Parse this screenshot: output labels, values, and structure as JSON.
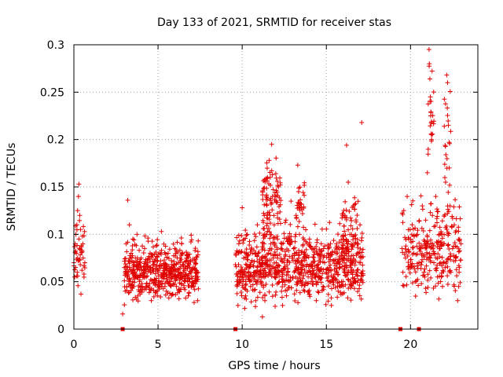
{
  "chart_data": {
    "type": "scatter",
    "title": "Day 133 of 2021, SRMTID for receiver stas",
    "xlabel": "GPS time / hours",
    "ylabel": "SRMTID / TECUs",
    "xlim": [
      0,
      24
    ],
    "ylim": [
      0,
      0.3
    ],
    "xticks": [
      0,
      5,
      10,
      15,
      20
    ],
    "xtick_labels": [
      "0",
      "5",
      "10",
      "15",
      "20"
    ],
    "yticks": [
      0,
      0.05,
      0.1,
      0.15,
      0.2,
      0.25,
      0.3
    ],
    "ytick_labels": [
      "0",
      "0.05",
      "0.1",
      "0.15",
      "0.2",
      "0.25",
      "0.3"
    ],
    "grid": true,
    "marker": "+",
    "series_color": "#e00000",
    "series": [
      {
        "name": "SRMTID",
        "points": [
          [
            0.0,
            0.07
          ],
          [
            0.05,
            0.055
          ],
          [
            0.08,
            0.09
          ],
          [
            0.1,
            0.065
          ],
          [
            0.12,
            0.1
          ],
          [
            0.15,
            0.08
          ],
          [
            0.18,
            0.11
          ],
          [
            0.2,
            0.06
          ],
          [
            0.22,
            0.125
          ],
          [
            0.25,
            0.072
          ],
          [
            0.27,
            0.14
          ],
          [
            0.3,
            0.095
          ],
          [
            0.3,
            0.153
          ],
          [
            0.33,
            0.085
          ],
          [
            0.35,
            0.12
          ],
          [
            0.38,
            0.068
          ],
          [
            0.4,
            0.105
          ],
          [
            0.42,
            0.037
          ],
          [
            0.45,
            0.088
          ],
          [
            0.48,
            0.062
          ],
          [
            0.5,
            0.098
          ],
          [
            0.55,
            0.075
          ],
          [
            0.6,
            0.058
          ],
          [
            0.65,
            0.07
          ],
          [
            2.9,
            0.016
          ],
          [
            3.0,
            0.065
          ],
          [
            3.05,
            0.04
          ],
          [
            3.1,
            0.09
          ],
          [
            3.15,
            0.055
          ],
          [
            3.2,
            0.136
          ],
          [
            3.25,
            0.072
          ],
          [
            3.3,
            0.11
          ],
          [
            3.35,
            0.05
          ],
          [
            3.4,
            0.08
          ],
          [
            3.45,
            0.062
          ],
          [
            3.5,
            0.095
          ],
          [
            3.55,
            0.045
          ],
          [
            3.6,
            0.07
          ],
          [
            3.7,
            0.058
          ],
          [
            3.75,
            0.1
          ],
          [
            3.8,
            0.035
          ],
          [
            3.85,
            0.068
          ],
          [
            3.9,
            0.05
          ],
          [
            4.0,
            0.075
          ],
          [
            4.1,
            0.042
          ],
          [
            4.15,
            0.06
          ],
          [
            4.2,
            0.085
          ],
          [
            4.3,
            0.055
          ],
          [
            4.35,
            0.07
          ],
          [
            4.4,
            0.096
          ],
          [
            4.5,
            0.048
          ],
          [
            4.55,
            0.065
          ],
          [
            4.6,
            0.03
          ],
          [
            4.7,
            0.078
          ],
          [
            4.8,
            0.052
          ],
          [
            4.9,
            0.088
          ],
          [
            5.0,
            0.06
          ],
          [
            5.1,
            0.045
          ],
          [
            5.15,
            0.072
          ],
          [
            5.2,
            0.103
          ],
          [
            5.3,
            0.055
          ],
          [
            5.4,
            0.068
          ],
          [
            5.5,
            0.04
          ],
          [
            5.6,
            0.08
          ],
          [
            5.7,
            0.058
          ],
          [
            5.8,
            0.065
          ],
          [
            5.9,
            0.047
          ],
          [
            6.0,
            0.085
          ],
          [
            6.1,
            0.055
          ],
          [
            6.2,
            0.07
          ],
          [
            6.3,
            0.042
          ],
          [
            6.4,
            0.09
          ],
          [
            6.5,
            0.06
          ],
          [
            6.6,
            0.05
          ],
          [
            6.7,
            0.075
          ],
          [
            6.8,
            0.035
          ],
          [
            6.9,
            0.065
          ],
          [
            7.0,
            0.055
          ],
          [
            7.1,
            0.045
          ],
          [
            7.2,
            0.07
          ],
          [
            7.3,
            0.05
          ],
          [
            7.35,
            0.03
          ],
          [
            9.6,
            0.068
          ],
          [
            9.7,
            0.045
          ],
          [
            9.75,
            0.025
          ],
          [
            9.8,
            0.09
          ],
          [
            9.9,
            0.06
          ],
          [
            10.0,
            0.128
          ],
          [
            10.05,
            0.05
          ],
          [
            10.1,
            0.075
          ],
          [
            10.2,
            0.035
          ],
          [
            10.3,
            0.1
          ],
          [
            10.4,
            0.065
          ],
          [
            10.5,
            0.045
          ],
          [
            10.6,
            0.08
          ],
          [
            10.7,
            0.055
          ],
          [
            10.8,
            0.03
          ],
          [
            10.9,
            0.11
          ],
          [
            11.0,
            0.07
          ],
          [
            11.1,
            0.05
          ],
          [
            11.2,
            0.013
          ],
          [
            11.3,
            0.09
          ],
          [
            11.4,
            0.06
          ],
          [
            11.5,
            0.16
          ],
          [
            11.55,
            0.08
          ],
          [
            11.6,
            0.178
          ],
          [
            11.65,
            0.12
          ],
          [
            11.7,
            0.09
          ],
          [
            11.75,
            0.195
          ],
          [
            11.8,
            0.14
          ],
          [
            11.85,
            0.075
          ],
          [
            11.9,
            0.11
          ],
          [
            12.0,
            0.065
          ],
          [
            12.1,
            0.095
          ],
          [
            12.2,
            0.05
          ],
          [
            12.3,
            0.085
          ],
          [
            12.4,
            0.025
          ],
          [
            12.5,
            0.07
          ],
          [
            12.6,
            0.115
          ],
          [
            12.7,
            0.06
          ],
          [
            12.8,
            0.09
          ],
          [
            12.9,
            0.135
          ],
          [
            13.0,
            0.055
          ],
          [
            13.1,
            0.08
          ],
          [
            13.2,
            0.12
          ],
          [
            13.3,
            0.173
          ],
          [
            13.35,
            0.145
          ],
          [
            13.4,
            0.1
          ],
          [
            13.5,
            0.065
          ],
          [
            13.6,
            0.088
          ],
          [
            13.7,
            0.04
          ],
          [
            13.8,
            0.075
          ],
          [
            13.9,
            0.06
          ],
          [
            14.0,
            0.095
          ],
          [
            14.1,
            0.05
          ],
          [
            14.2,
            0.07
          ],
          [
            14.3,
            0.085
          ],
          [
            14.4,
            0.03
          ],
          [
            14.5,
            0.065
          ],
          [
            14.6,
            0.055
          ],
          [
            14.7,
            0.09
          ],
          [
            14.8,
            0.045
          ],
          [
            14.9,
            0.07
          ],
          [
            15.0,
            0.06
          ],
          [
            15.1,
            0.08
          ],
          [
            15.2,
            0.05
          ],
          [
            15.3,
            0.025
          ],
          [
            15.4,
            0.072
          ],
          [
            15.5,
            0.058
          ],
          [
            15.6,
            0.09
          ],
          [
            15.7,
            0.04
          ],
          [
            15.8,
            0.065
          ],
          [
            15.9,
            0.05
          ],
          [
            16.0,
            0.085
          ],
          [
            16.1,
            0.12
          ],
          [
            16.2,
            0.194
          ],
          [
            16.3,
            0.155
          ],
          [
            16.4,
            0.1
          ],
          [
            16.5,
            0.07
          ],
          [
            16.6,
            0.13
          ],
          [
            16.7,
            0.09
          ],
          [
            16.8,
            0.06
          ],
          [
            16.9,
            0.08
          ],
          [
            17.0,
            0.11
          ],
          [
            17.1,
            0.218
          ],
          [
            19.5,
            0.085
          ],
          [
            19.55,
            0.06
          ],
          [
            19.6,
            0.125
          ],
          [
            19.7,
            0.075
          ],
          [
            19.8,
            0.14
          ],
          [
            19.9,
            0.095
          ],
          [
            20.0,
            0.065
          ],
          [
            20.1,
            0.11
          ],
          [
            20.2,
            0.08
          ],
          [
            20.3,
            0.05
          ],
          [
            20.4,
            0.1
          ],
          [
            20.5,
            0.07
          ],
          [
            20.6,
            0.085
          ],
          [
            20.7,
            0.13
          ],
          [
            20.8,
            0.06
          ],
          [
            20.85,
            0.09
          ],
          [
            20.9,
            0.115
          ],
          [
            21.0,
            0.165
          ],
          [
            21.05,
            0.075
          ],
          [
            21.1,
            0.295
          ],
          [
            21.12,
            0.28
          ],
          [
            21.15,
            0.264
          ],
          [
            21.18,
            0.245
          ],
          [
            21.2,
            0.225
          ],
          [
            21.25,
            0.205
          ],
          [
            21.3,
            0.12
          ],
          [
            21.4,
            0.08
          ],
          [
            21.5,
            0.14
          ],
          [
            21.6,
            0.055
          ],
          [
            21.7,
            0.1
          ],
          [
            21.8,
            0.07
          ],
          [
            21.9,
            0.045
          ],
          [
            22.0,
            0.09
          ],
          [
            22.1,
            0.184
          ],
          [
            22.15,
            0.268
          ],
          [
            22.2,
            0.26
          ],
          [
            22.25,
            0.215
          ],
          [
            22.3,
            0.17
          ],
          [
            22.35,
            0.13
          ],
          [
            22.4,
            0.06
          ],
          [
            22.5,
            0.085
          ],
          [
            22.6,
            0.11
          ],
          [
            22.7,
            0.075
          ],
          [
            22.8,
            0.03
          ],
          [
            22.9,
            0.065
          ],
          [
            23.0,
            0.09
          ]
        ],
        "bursts": [
          [
            0.0,
            0.7,
            0.035,
            0.155,
            30
          ],
          [
            3.0,
            7.4,
            0.025,
            0.105,
            500
          ],
          [
            9.6,
            17.2,
            0.02,
            0.125,
            780
          ],
          [
            11.2,
            12.3,
            0.09,
            0.195,
            80
          ],
          [
            13.2,
            13.7,
            0.1,
            0.17,
            25
          ],
          [
            15.9,
            16.9,
            0.06,
            0.16,
            60
          ],
          [
            19.5,
            23.0,
            0.03,
            0.15,
            260
          ],
          [
            21.0,
            21.4,
            0.15,
            0.295,
            20
          ],
          [
            22.0,
            22.4,
            0.12,
            0.27,
            20
          ]
        ],
        "baseline_points": [
          [
            2.9,
            0
          ],
          [
            9.6,
            0
          ],
          [
            19.4,
            0
          ],
          [
            20.5,
            0
          ]
        ]
      }
    ]
  }
}
